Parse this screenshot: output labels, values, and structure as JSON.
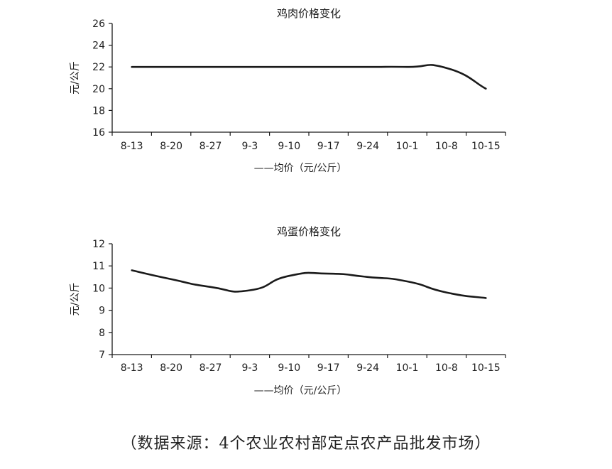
{
  "chart_data": [
    {
      "type": "line",
      "title": "鸡肉价格变化",
      "xlabel": "",
      "ylabel": "元/公斤",
      "categories": [
        "8-13",
        "8-20",
        "8-27",
        "9-3",
        "9-10",
        "9-17",
        "9-24",
        "10-1",
        "10-8",
        "10-15"
      ],
      "series": [
        {
          "name": "——均价（元/公斤）",
          "values": [
            22,
            22,
            22,
            22,
            22,
            22,
            22,
            22,
            21.9,
            20
          ]
        }
      ],
      "ylim": [
        16,
        26
      ],
      "yticks": [
        16,
        18,
        20,
        22,
        24,
        26
      ],
      "grid": false,
      "legend": "bottom"
    },
    {
      "type": "line",
      "title": "鸡蛋价格变化",
      "xlabel": "",
      "ylabel": "元/公斤",
      "categories": [
        "8-13",
        "8-20",
        "8-27",
        "9-3",
        "9-10",
        "9-17",
        "9-24",
        "10-1",
        "10-8",
        "10-15"
      ],
      "series": [
        {
          "name": "——均价（元/公斤）",
          "values": [
            10.8,
            10.4,
            10.05,
            9.9,
            10.55,
            10.65,
            10.5,
            10.3,
            9.8,
            9.55
          ]
        }
      ],
      "ylim": [
        7,
        12
      ],
      "yticks": [
        7,
        8,
        9,
        10,
        11,
        12
      ],
      "grid": false,
      "legend": "bottom"
    }
  ],
  "source_note": "（数据来源：4个农业农村部定点农产品批发市场）",
  "colors": {
    "line": "#1a1a1a",
    "axis": "#1a1a1a",
    "text": "#222222"
  }
}
